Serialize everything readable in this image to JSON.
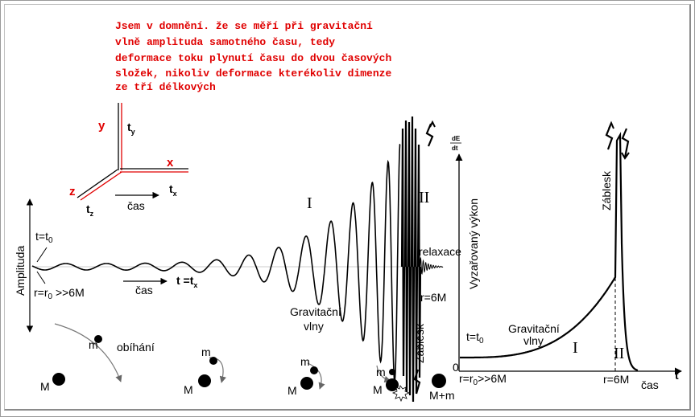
{
  "note": {
    "lines": [
      "Jsem v domnění. že se měří při gravitační",
      "vlně amplituda samotného času, tedy",
      "deformace toku plynutí času do dvou časových",
      "složek, nikoliv deformace kterékoliv dimenze",
      "ze tří délkových"
    ]
  },
  "axes3d": {
    "y": "y",
    "x": "x",
    "z": "z",
    "ty": "t",
    "ty_sub": "y",
    "tx": "t",
    "tx_sub": "x",
    "tz": "t",
    "tz_sub": "z",
    "cas": "čas"
  },
  "left_plot": {
    "amplitude_label": "Amplituda",
    "t0": "t=t",
    "t0_sub": "0",
    "r0": "r=r",
    "r0_sub": "0",
    "r0_tail": " >>6M",
    "cas": "čas",
    "t_eq": "t =t",
    "t_eq_sub": "x",
    "region_I": "I",
    "region_II": "II",
    "relaxace": "relaxace",
    "r6M": "r=6M",
    "waves_line1": "Gravitační",
    "waves_line2": "vlny",
    "zablesk": "Záblesk"
  },
  "orbit": {
    "m": "m",
    "M": "M",
    "obihani": "obíhání",
    "merged": "M+m"
  },
  "right_plot": {
    "ylabel": "Vyzařovaný výkon",
    "dE": "dE",
    "dt": "dt",
    "zablesk": "Záblesk",
    "t0": "t=t",
    "t0_sub": "0",
    "waves_line1": "Gravitační",
    "waves_line2": "vlny",
    "region_I": "I",
    "region_II": "II",
    "zero": "0",
    "r0": "r=r",
    "r0_sub": "0",
    "r0_tail": ">>6M",
    "r6M": "r=6M",
    "cas": "čas",
    "t_axis": "t"
  }
}
